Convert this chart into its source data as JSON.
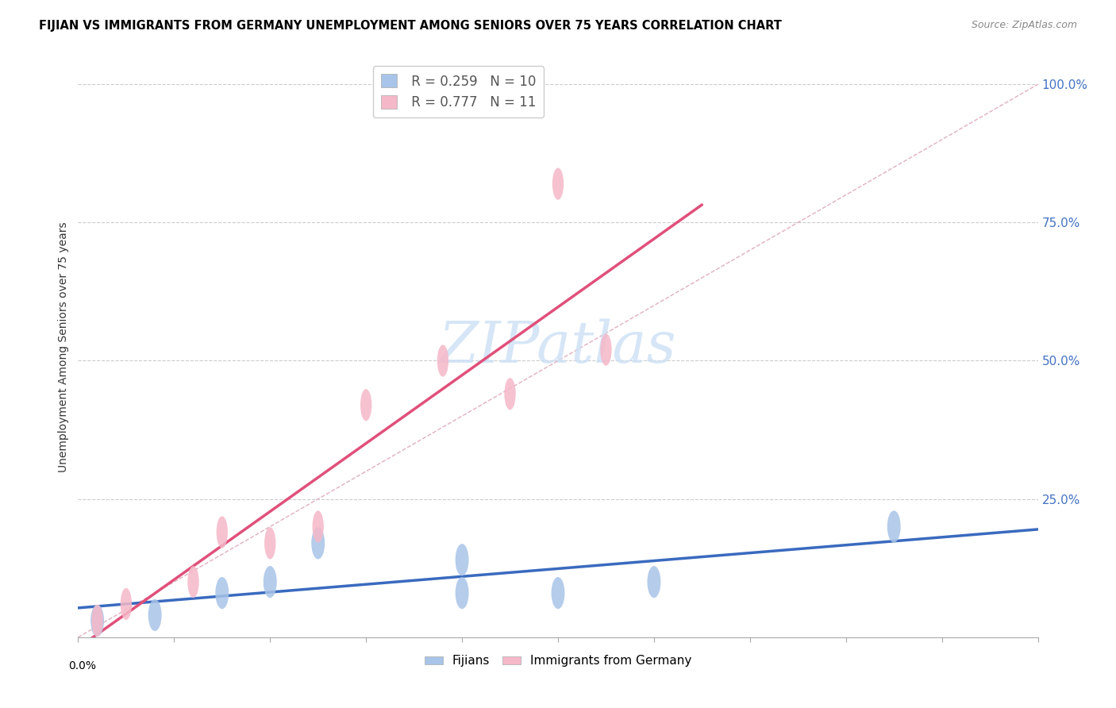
{
  "title": "FIJIAN VS IMMIGRANTS FROM GERMANY UNEMPLOYMENT AMONG SENIORS OVER 75 YEARS CORRELATION CHART",
  "source": "Source: ZipAtlas.com",
  "ylabel": "Unemployment Among Seniors over 75 years",
  "right_yticks": [
    0.0,
    0.25,
    0.5,
    0.75,
    1.0
  ],
  "right_yticklabels": [
    "",
    "25.0%",
    "50.0%",
    "75.0%",
    "100.0%"
  ],
  "xmin": 0.0,
  "xmax": 0.1,
  "ymin": 0.0,
  "ymax": 1.05,
  "fijians_R": 0.259,
  "fijians_N": 10,
  "germany_R": 0.777,
  "germany_N": 11,
  "fijians_color": "#a8c4e8",
  "germany_color": "#f5b8c8",
  "fijians_line_color": "#3a6abf",
  "germany_line_color": "#e0507a",
  "ref_line_color": "#e0b0c0",
  "watermark_color": "#cce0f5",
  "fijians_x": [
    0.002,
    0.008,
    0.015,
    0.02,
    0.025,
    0.04,
    0.04,
    0.05,
    0.06,
    0.085
  ],
  "fijians_y": [
    0.03,
    0.04,
    0.08,
    0.1,
    0.17,
    0.08,
    0.14,
    0.08,
    0.1,
    0.2
  ],
  "germany_x": [
    0.002,
    0.005,
    0.012,
    0.015,
    0.02,
    0.025,
    0.03,
    0.038,
    0.045,
    0.05,
    0.055
  ],
  "germany_y": [
    0.03,
    0.06,
    0.1,
    0.19,
    0.17,
    0.2,
    0.42,
    0.5,
    0.44,
    0.82,
    0.52
  ],
  "fijians_line_x0": 0.0,
  "fijians_line_x1": 0.1,
  "germany_line_x0": 0.0,
  "germany_line_x1": 0.065,
  "ref_line_x0": 0.0,
  "ref_line_x1": 0.1,
  "ref_line_y0": 0.0,
  "ref_line_y1": 1.0,
  "xtick_positions": [
    0.0,
    0.01,
    0.02,
    0.03,
    0.04,
    0.05,
    0.06,
    0.07,
    0.08,
    0.09,
    0.1
  ]
}
